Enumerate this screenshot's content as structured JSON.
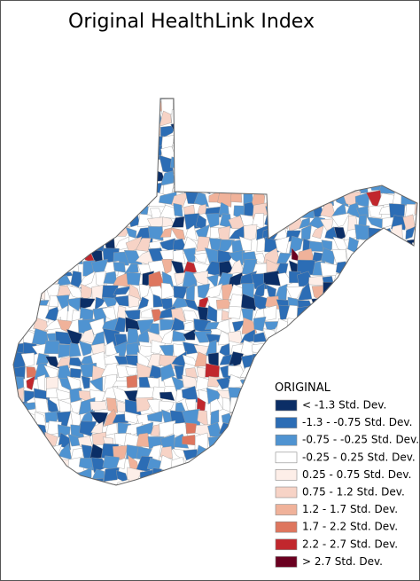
{
  "title": "Original HealthLink Index",
  "legend": {
    "title": "ORIGINAL",
    "items": [
      {
        "label": "< -1.3 Std. Dev.",
        "color": "#0b2e66"
      },
      {
        "label": "-1.3 - -0.75 Std. Dev.",
        "color": "#2c6db5"
      },
      {
        "label": "-0.75 - -0.25 Std. Dev.",
        "color": "#4f93d1"
      },
      {
        "label": "-0.25 - 0.25 Std. Dev.",
        "color": "#ffffff"
      },
      {
        "label": "0.25 - 0.75 Std. Dev.",
        "color": "#fdeee8"
      },
      {
        "label": "0.75 - 1.2 Std. Dev.",
        "color": "#f7d3c6"
      },
      {
        "label": "1.2 - 1.7 Std. Dev.",
        "color": "#f0b29a"
      },
      {
        "label": "1.7 - 2.2 Std. Dev.",
        "color": "#de765e"
      },
      {
        "label": "2.2 - 2.7 Std. Dev.",
        "color": "#c1272d"
      },
      {
        "label": "> 2.7 Std. Dev.",
        "color": "#6a0020"
      }
    ]
  }
}
